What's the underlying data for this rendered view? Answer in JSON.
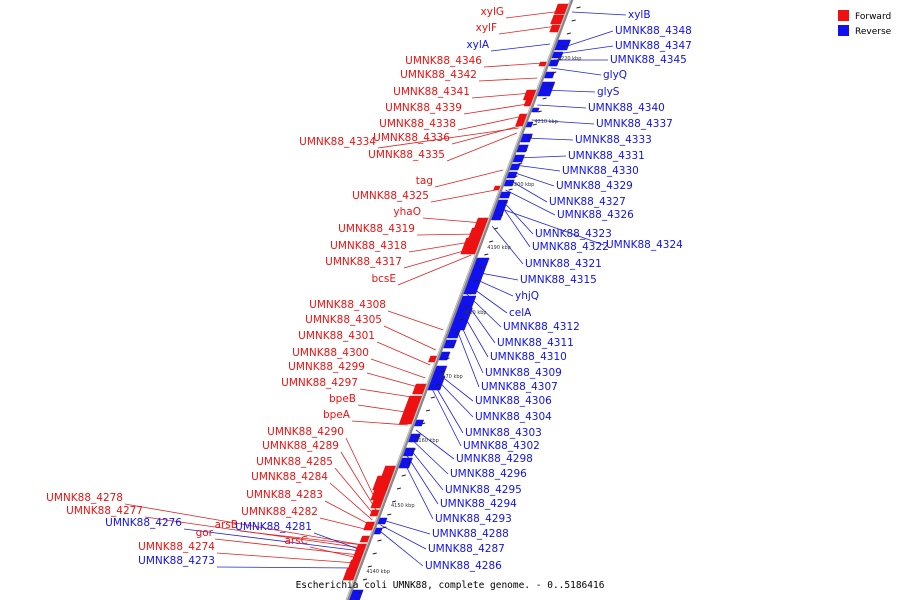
{
  "colors": {
    "forward": "#ee1111",
    "reverse": "#1111ee",
    "backbone": "#888888",
    "line_forward": "#dd2222",
    "line_reverse": "#2222dd"
  },
  "legend": {
    "forward_label": "Forward",
    "reverse_label": "Reverse"
  },
  "caption": "Escherichia coli UMNK88, complete genome. - 0..5186416",
  "ticks": [
    "4220 kbp",
    "4210 kbp",
    "4200 kbp",
    "4190 kbp",
    "4180 kbp",
    "4170 kbp",
    "4160 kbp",
    "4150 kbp",
    "4140 kbp"
  ],
  "left_labels": [
    {
      "text": "xylG",
      "strand": "forward"
    },
    {
      "text": "xylF",
      "strand": "forward"
    },
    {
      "text": "xylA",
      "strand": "reverse"
    },
    {
      "text": "UMNK88_4346",
      "strand": "forward"
    },
    {
      "text": "UMNK88_4342",
      "strand": "forward"
    },
    {
      "text": "UMNK88_4341",
      "strand": "forward"
    },
    {
      "text": "UMNK88_4339",
      "strand": "forward"
    },
    {
      "text": "UMNK88_4338",
      "strand": "forward"
    },
    {
      "text": "UMNK88_4336",
      "strand": "forward"
    },
    {
      "text": "UMNK88_4334",
      "strand": "forward"
    },
    {
      "text": "UMNK88_4335",
      "strand": "forward"
    },
    {
      "text": "tag",
      "strand": "forward"
    },
    {
      "text": "UMNK88_4325",
      "strand": "forward"
    },
    {
      "text": "yhaO",
      "strand": "forward"
    },
    {
      "text": "UMNK88_4319",
      "strand": "forward"
    },
    {
      "text": "UMNK88_4318",
      "strand": "forward"
    },
    {
      "text": "UMNK88_4317",
      "strand": "forward"
    },
    {
      "text": "bcsE",
      "strand": "forward"
    },
    {
      "text": "UMNK88_4308",
      "strand": "forward"
    },
    {
      "text": "UMNK88_4305",
      "strand": "forward"
    },
    {
      "text": "UMNK88_4301",
      "strand": "forward"
    },
    {
      "text": "UMNK88_4300",
      "strand": "forward"
    },
    {
      "text": "UMNK88_4299",
      "strand": "forward"
    },
    {
      "text": "UMNK88_4297",
      "strand": "forward"
    },
    {
      "text": "bpeB",
      "strand": "forward"
    },
    {
      "text": "bpeA",
      "strand": "forward"
    },
    {
      "text": "UMNK88_4290",
      "strand": "forward"
    },
    {
      "text": "UMNK88_4289",
      "strand": "forward"
    },
    {
      "text": "UMNK88_4285",
      "strand": "forward"
    },
    {
      "text": "UMNK88_4284",
      "strand": "forward"
    },
    {
      "text": "UMNK88_4283",
      "strand": "forward"
    },
    {
      "text": "UMNK88_4282",
      "strand": "forward"
    },
    {
      "text": "UMNK88_4278",
      "strand": "forward"
    },
    {
      "text": "UMNK88_4277",
      "strand": "forward"
    },
    {
      "text": "UMNK88_4276",
      "strand": "reverse"
    },
    {
      "text": "arsB",
      "strand": "forward"
    },
    {
      "text": "UMNK88_4281",
      "strand": "reverse"
    },
    {
      "text": "gor",
      "strand": "forward"
    },
    {
      "text": "arsC",
      "strand": "forward"
    },
    {
      "text": "UMNK88_4274",
      "strand": "forward"
    },
    {
      "text": "UMNK88_4273",
      "strand": "reverse"
    }
  ],
  "right_labels": [
    {
      "text": "xylB",
      "strand": "reverse"
    },
    {
      "text": "UMNK88_4348",
      "strand": "reverse"
    },
    {
      "text": "UMNK88_4347",
      "strand": "reverse"
    },
    {
      "text": "UMNK88_4345",
      "strand": "reverse"
    },
    {
      "text": "glyQ",
      "strand": "reverse"
    },
    {
      "text": "glyS",
      "strand": "reverse"
    },
    {
      "text": "UMNK88_4340",
      "strand": "reverse"
    },
    {
      "text": "UMNK88_4337",
      "strand": "reverse"
    },
    {
      "text": "UMNK88_4333",
      "strand": "reverse"
    },
    {
      "text": "UMNK88_4331",
      "strand": "reverse"
    },
    {
      "text": "UMNK88_4330",
      "strand": "reverse"
    },
    {
      "text": "UMNK88_4329",
      "strand": "reverse"
    },
    {
      "text": "UMNK88_4327",
      "strand": "reverse"
    },
    {
      "text": "UMNK88_4326",
      "strand": "reverse"
    },
    {
      "text": "UMNK88_4323",
      "strand": "reverse"
    },
    {
      "text": "UMNK88_4322",
      "strand": "reverse"
    },
    {
      "text": "UMNK88_4324",
      "strand": "reverse"
    },
    {
      "text": "UMNK88_4321",
      "strand": "reverse"
    },
    {
      "text": "UMNK88_4315",
      "strand": "reverse"
    },
    {
      "text": "yhjQ",
      "strand": "reverse"
    },
    {
      "text": "celA",
      "strand": "reverse"
    },
    {
      "text": "UMNK88_4312",
      "strand": "reverse"
    },
    {
      "text": "UMNK88_4311",
      "strand": "reverse"
    },
    {
      "text": "UMNK88_4310",
      "strand": "reverse"
    },
    {
      "text": "UMNK88_4309",
      "strand": "reverse"
    },
    {
      "text": "UMNK88_4307",
      "strand": "reverse"
    },
    {
      "text": "UMNK88_4306",
      "strand": "reverse"
    },
    {
      "text": "UMNK88_4304",
      "strand": "reverse"
    },
    {
      "text": "UMNK88_4303",
      "strand": "reverse"
    },
    {
      "text": "UMNK88_4302",
      "strand": "reverse"
    },
    {
      "text": "UMNK88_4298",
      "strand": "reverse"
    },
    {
      "text": "UMNK88_4296",
      "strand": "reverse"
    },
    {
      "text": "UMNK88_4295",
      "strand": "reverse"
    },
    {
      "text": "UMNK88_4294",
      "strand": "reverse"
    },
    {
      "text": "UMNK88_4293",
      "strand": "reverse"
    },
    {
      "text": "UMNK88_4288",
      "strand": "reverse"
    },
    {
      "text": "UMNK88_4287",
      "strand": "reverse"
    },
    {
      "text": "UMNK88_4286",
      "strand": "reverse"
    }
  ]
}
